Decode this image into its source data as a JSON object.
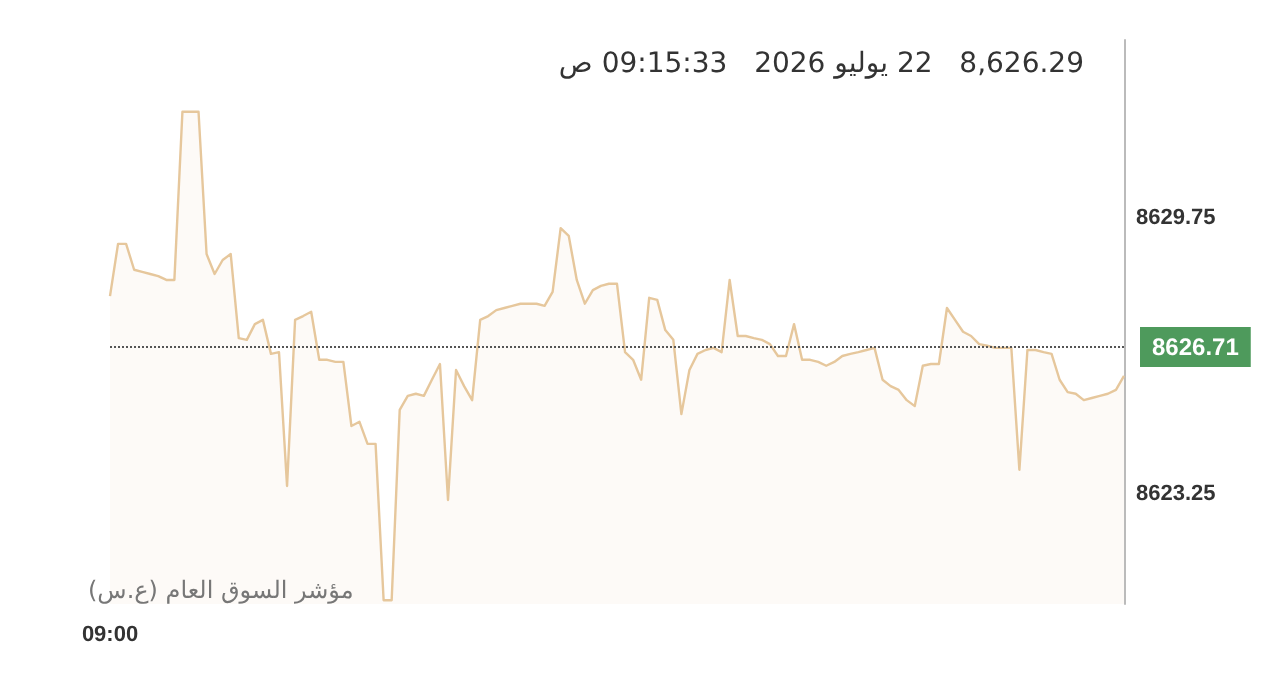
{
  "chart_data": {
    "type": "area",
    "title": "8,626.29   22 يوليو 2026   09:15:33 ص",
    "annotations": [
      "مؤشر السوق العام (ع.س)"
    ],
    "categories": [
      "09:00",
      null,
      null,
      null,
      null,
      null,
      null,
      null,
      null,
      null,
      null,
      null,
      null,
      null,
      null,
      null,
      null,
      null,
      null,
      null,
      null,
      null,
      null,
      null,
      null,
      null,
      null,
      null,
      null,
      null,
      null,
      null,
      null,
      null,
      null,
      null,
      null,
      null,
      null,
      null,
      null,
      null,
      null,
      null,
      null,
      null,
      null,
      null,
      null,
      null,
      null,
      null,
      null,
      null,
      null,
      null,
      null,
      null,
      null,
      null,
      null,
      null,
      null,
      null,
      null,
      null,
      null,
      null,
      null,
      null,
      null,
      null,
      null,
      null,
      null,
      null,
      null,
      null,
      null,
      null,
      null,
      null,
      null,
      null,
      null,
      null,
      null,
      null,
      null,
      null,
      null,
      null,
      null,
      null,
      null,
      null,
      null,
      null,
      null,
      null,
      null,
      null,
      null,
      null,
      null,
      null,
      null,
      null,
      null,
      null,
      null,
      null,
      null,
      null,
      null,
      null,
      null,
      null,
      null,
      null,
      null,
      null,
      null,
      null,
      null,
      null,
      null
    ],
    "values": [
      8627.91,
      8629.14,
      8629.14,
      8628.53,
      8628.48,
      8628.43,
      8628.38,
      8628.29,
      8628.29,
      8632.25,
      8632.25,
      8632.25,
      8628.9,
      8628.43,
      8628.76,
      8628.9,
      8626.92,
      8626.88,
      8627.25,
      8627.35,
      8626.55,
      8626.59,
      8623.44,
      8627.35,
      8627.44,
      8627.54,
      8626.41,
      8626.41,
      8626.36,
      8626.36,
      8624.85,
      8624.95,
      8624.43,
      8624.43,
      8620.75,
      8620.75,
      8625.23,
      8625.56,
      8625.61,
      8625.56,
      8625.94,
      8626.31,
      8623.11,
      8626.17,
      8625.79,
      8625.46,
      8627.35,
      8627.44,
      8627.58,
      8627.63,
      8627.68,
      8627.73,
      8627.73,
      8627.73,
      8627.68,
      8628.01,
      8629.51,
      8629.33,
      8628.29,
      8627.73,
      8628.05,
      8628.15,
      8628.2,
      8628.2,
      8626.59,
      8626.41,
      8625.94,
      8627.87,
      8627.82,
      8627.11,
      8626.88,
      8625.13,
      8626.17,
      8626.55,
      8626.64,
      8626.69,
      8626.59,
      8628.29,
      8626.97,
      8626.97,
      8626.92,
      8626.88,
      8626.78,
      8626.5,
      8626.5,
      8627.25,
      8626.41,
      8626.41,
      8626.36,
      8626.27,
      8626.36,
      8626.5,
      8626.55,
      8626.59,
      8626.64,
      8626.69,
      8625.94,
      8625.79,
      8625.7,
      8625.46,
      8625.32,
      8626.27,
      8626.31,
      8626.31,
      8627.63,
      8627.35,
      8627.07,
      8626.97,
      8626.78,
      8626.74,
      8626.69,
      8626.69,
      8626.69,
      8623.82,
      8626.64,
      8626.64,
      8626.59,
      8626.55,
      8625.94,
      8625.65,
      8625.61,
      8625.46,
      8625.51,
      8625.56,
      8625.61,
      8625.7,
      8626.03
    ],
    "color": "#e6c79c",
    "ylim": [
      8620.66,
      8633.94
    ],
    "yticks": [
      8623.25,
      8629.75
    ],
    "ref_lines": [
      {
        "axis": "y",
        "value": 8626.71,
        "label": "8626.71",
        "color": "#555555",
        "line_style": "dotted"
      }
    ],
    "grid": false,
    "marker": "none"
  }
}
